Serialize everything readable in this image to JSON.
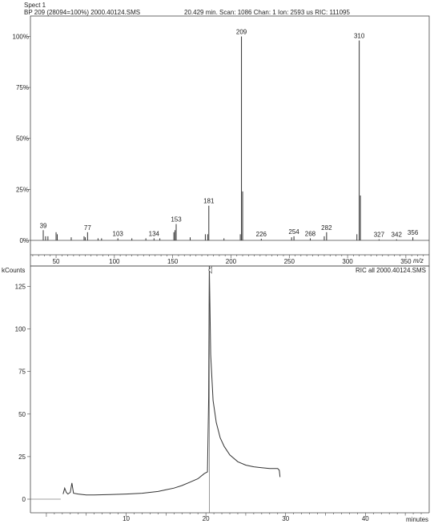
{
  "header": {
    "spect": "Spect 1",
    "bp": "BP 209 (28094=100%) 2000.40124.SMS",
    "scan_info": "20.429 min. Scan: 1086 Chan: 1 Ion: 2593 us RIC: 111095"
  },
  "chart_data": [
    {
      "type": "bar",
      "title": "",
      "xlabel": "m/z",
      "ylabel": "",
      "xlim": [
        28,
        370
      ],
      "ylim": [
        0,
        110
      ],
      "yticks": [
        "0%",
        "25%",
        "50%",
        "75%",
        "100%"
      ],
      "ytick_values": [
        0,
        25,
        50,
        75,
        100
      ],
      "xticks": [
        50,
        100,
        150,
        200,
        250,
        300,
        350
      ],
      "peaks": [
        {
          "mz": 39,
          "value": 5,
          "label": "39"
        },
        {
          "mz": 41,
          "value": 2
        },
        {
          "mz": 43,
          "value": 2
        },
        {
          "mz": 50,
          "value": 4
        },
        {
          "mz": 51,
          "value": 3
        },
        {
          "mz": 63,
          "value": 1.5
        },
        {
          "mz": 74,
          "value": 2
        },
        {
          "mz": 75,
          "value": 1.5
        },
        {
          "mz": 77,
          "value": 4,
          "label": "77"
        },
        {
          "mz": 86,
          "value": 1
        },
        {
          "mz": 89,
          "value": 1
        },
        {
          "mz": 103,
          "value": 1,
          "label": "103"
        },
        {
          "mz": 115,
          "value": 1
        },
        {
          "mz": 127,
          "value": 1
        },
        {
          "mz": 134,
          "value": 1,
          "label": "134"
        },
        {
          "mz": 139,
          "value": 1
        },
        {
          "mz": 151,
          "value": 4
        },
        {
          "mz": 152,
          "value": 5
        },
        {
          "mz": 153,
          "value": 8,
          "label": "153"
        },
        {
          "mz": 165,
          "value": 1.5
        },
        {
          "mz": 178,
          "value": 3
        },
        {
          "mz": 180,
          "value": 3
        },
        {
          "mz": 181,
          "value": 17,
          "label": "181"
        },
        {
          "mz": 194,
          "value": 1
        },
        {
          "mz": 208,
          "value": 3
        },
        {
          "mz": 209,
          "value": 100,
          "label": "209"
        },
        {
          "mz": 210,
          "value": 24
        },
        {
          "mz": 226,
          "value": 0.8,
          "label": "226"
        },
        {
          "mz": 252,
          "value": 1.5
        },
        {
          "mz": 254,
          "value": 2,
          "label": "254"
        },
        {
          "mz": 268,
          "value": 1,
          "label": "268"
        },
        {
          "mz": 280,
          "value": 2
        },
        {
          "mz": 282,
          "value": 4,
          "label": "282"
        },
        {
          "mz": 308,
          "value": 3
        },
        {
          "mz": 310,
          "value": 98,
          "label": "310"
        },
        {
          "mz": 311,
          "value": 22
        },
        {
          "mz": 327,
          "value": 0.5,
          "label": "327"
        },
        {
          "mz": 342,
          "value": 0.5,
          "label": "342"
        },
        {
          "mz": 356,
          "value": 1.5,
          "label": "356"
        }
      ]
    },
    {
      "type": "line",
      "title": "RIC all 2000.40124.SMS",
      "xlabel": "minutes",
      "ylabel": "kCounts",
      "xlim": [
        -2,
        48
      ],
      "ylim": [
        -8,
        137
      ],
      "yticks": [
        0,
        25,
        50,
        75,
        100,
        125
      ],
      "xticks": [
        10,
        20,
        30,
        40
      ],
      "series": [
        {
          "x": [
            2.1,
            2.3,
            2.5,
            2.7,
            3.0,
            3.2,
            3.4,
            4,
            5,
            6,
            8,
            10,
            12,
            13,
            14,
            15,
            16,
            17,
            18,
            19,
            19.8,
            20.2,
            20.35,
            20.43,
            20.6,
            20.9,
            21.3,
            21.8,
            22.3,
            23,
            24,
            25,
            26,
            27,
            28,
            29,
            29.2,
            29.3
          ],
          "y": [
            3,
            6.5,
            4,
            3,
            4,
            9.5,
            3.5,
            3,
            2.5,
            2.5,
            2.7,
            3,
            3.5,
            4,
            4.5,
            5.5,
            6.5,
            8,
            10,
            12,
            15,
            16,
            60,
            137,
            85,
            58,
            45,
            36,
            31,
            26,
            22,
            20,
            19,
            18.5,
            18,
            18,
            17,
            13
          ]
        }
      ]
    }
  ]
}
